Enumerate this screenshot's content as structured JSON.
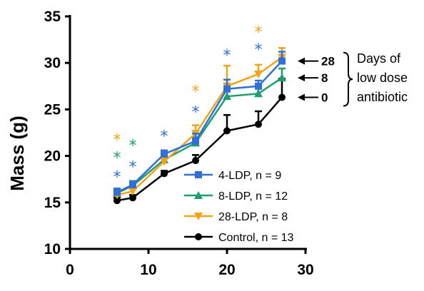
{
  "chart_data": {
    "type": "line",
    "title": "",
    "xlabel": "",
    "ylabel": "Mass (g)",
    "xlim": [
      0,
      30
    ],
    "ylim": [
      10,
      35
    ],
    "xticks": [
      "0",
      "10",
      "20",
      "30"
    ],
    "yticks": [
      "10",
      "15",
      "20",
      "25",
      "30",
      "35"
    ],
    "grid": false,
    "legend_position": "lower-right",
    "series": [
      {
        "name": "4-LDP, n = 9",
        "color": "#2f6fd6",
        "marker": "square",
        "x": [
          6,
          8,
          12,
          16,
          20,
          24,
          27
        ],
        "y": [
          16.1,
          16.9,
          20.2,
          21.6,
          27.2,
          27.5,
          30.2
        ],
        "err": [
          0.4,
          0.4,
          0.4,
          0.8,
          1.0,
          0.6,
          1.0
        ]
      },
      {
        "name": "8-LDP, n = 12",
        "color": "#1e9e6e",
        "marker": "triangle-up",
        "x": [
          6,
          8,
          12,
          16,
          20,
          24,
          27
        ],
        "y": [
          16.0,
          16.8,
          19.6,
          21.4,
          26.4,
          26.7,
          28.4
        ],
        "err": [
          0.4,
          0.4,
          0.4,
          0.6,
          0.8,
          0.6,
          1.0
        ]
      },
      {
        "name": "28-LDP, n = 8",
        "color": "#f2a31a",
        "marker": "triangle-down",
        "x": [
          6,
          8,
          12,
          16,
          20,
          24,
          27
        ],
        "y": [
          15.8,
          16.2,
          19.4,
          22.4,
          27.5,
          28.8,
          30.6
        ],
        "err": [
          0.4,
          0.4,
          0.5,
          0.9,
          2.2,
          1.0,
          1.0
        ]
      },
      {
        "name": "Control, n = 13",
        "color": "#000000",
        "marker": "circle",
        "x": [
          6,
          8,
          12,
          16,
          20,
          24,
          27
        ],
        "y": [
          15.2,
          15.5,
          18.1,
          19.5,
          22.7,
          23.4,
          26.3
        ],
        "err": [
          0.3,
          0.3,
          0.3,
          0.6,
          1.7,
          1.4,
          2.0
        ]
      }
    ],
    "significance": [
      {
        "x": 6,
        "marks": [
          {
            "color": "#2f6fd6",
            "y": 18.0
          },
          {
            "color": "#1e9e6e",
            "y": 20.1
          },
          {
            "color": "#f2a31a",
            "y": 22.0
          }
        ]
      },
      {
        "x": 8,
        "marks": [
          {
            "color": "#2f6fd6",
            "y": 19.1
          },
          {
            "color": "#1e9e6e",
            "y": 21.4
          }
        ]
      },
      {
        "x": 12,
        "marks": [
          {
            "color": "#2f6fd6",
            "y": 22.4
          }
        ]
      },
      {
        "x": 16,
        "marks": [
          {
            "color": "#2f6fd6",
            "y": 25.0
          },
          {
            "color": "#f2a31a",
            "y": 27.2
          }
        ]
      },
      {
        "x": 20,
        "marks": [
          {
            "color": "#2f6fd6",
            "y": 31.1
          }
        ]
      },
      {
        "x": 24,
        "marks": [
          {
            "color": "#2f6fd6",
            "y": 31.7
          },
          {
            "color": "#f2a31a",
            "y": 33.6
          }
        ]
      }
    ],
    "star_symbol": "*",
    "annotations": {
      "labels": [
        {
          "text": "28",
          "y": 30.2
        },
        {
          "text": "8",
          "y": 28.4
        },
        {
          "text": "0",
          "y": 26.3
        }
      ],
      "bracket_text": [
        "Days of",
        "low dose",
        "antibiotic"
      ]
    }
  }
}
